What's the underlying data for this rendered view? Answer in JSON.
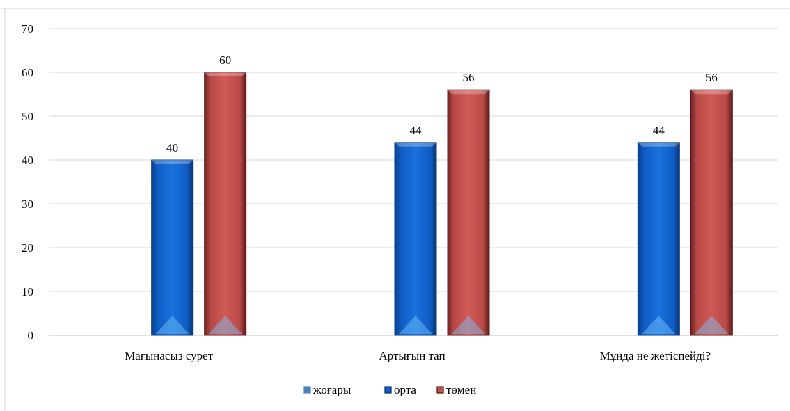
{
  "chart_data": {
    "type": "bar",
    "title": "",
    "xlabel": "",
    "ylabel": "",
    "categories": [
      "Мағынасыз сурет",
      "Артығын тап",
      "Мұнда не жетіспейді?"
    ],
    "series": [
      {
        "name": "жоғары",
        "values": [
          0,
          0,
          0
        ],
        "color": "#4472c4"
      },
      {
        "name": "орта",
        "values": [
          40,
          44,
          44
        ],
        "color": "#0b5ec8"
      },
      {
        "name": "төмен",
        "values": [
          60,
          56,
          56
        ],
        "color": "#c0504d"
      }
    ],
    "ylim": [
      0,
      70
    ],
    "yticks": [
      "0",
      "10",
      "20",
      "30",
      "40",
      "50",
      "60",
      "70"
    ],
    "data_labels": [
      [
        "",
        "40",
        "60"
      ],
      [
        "",
        "44",
        "56"
      ],
      [
        "",
        "44",
        "56"
      ]
    ],
    "grid": true,
    "legend_position": "bottom"
  }
}
